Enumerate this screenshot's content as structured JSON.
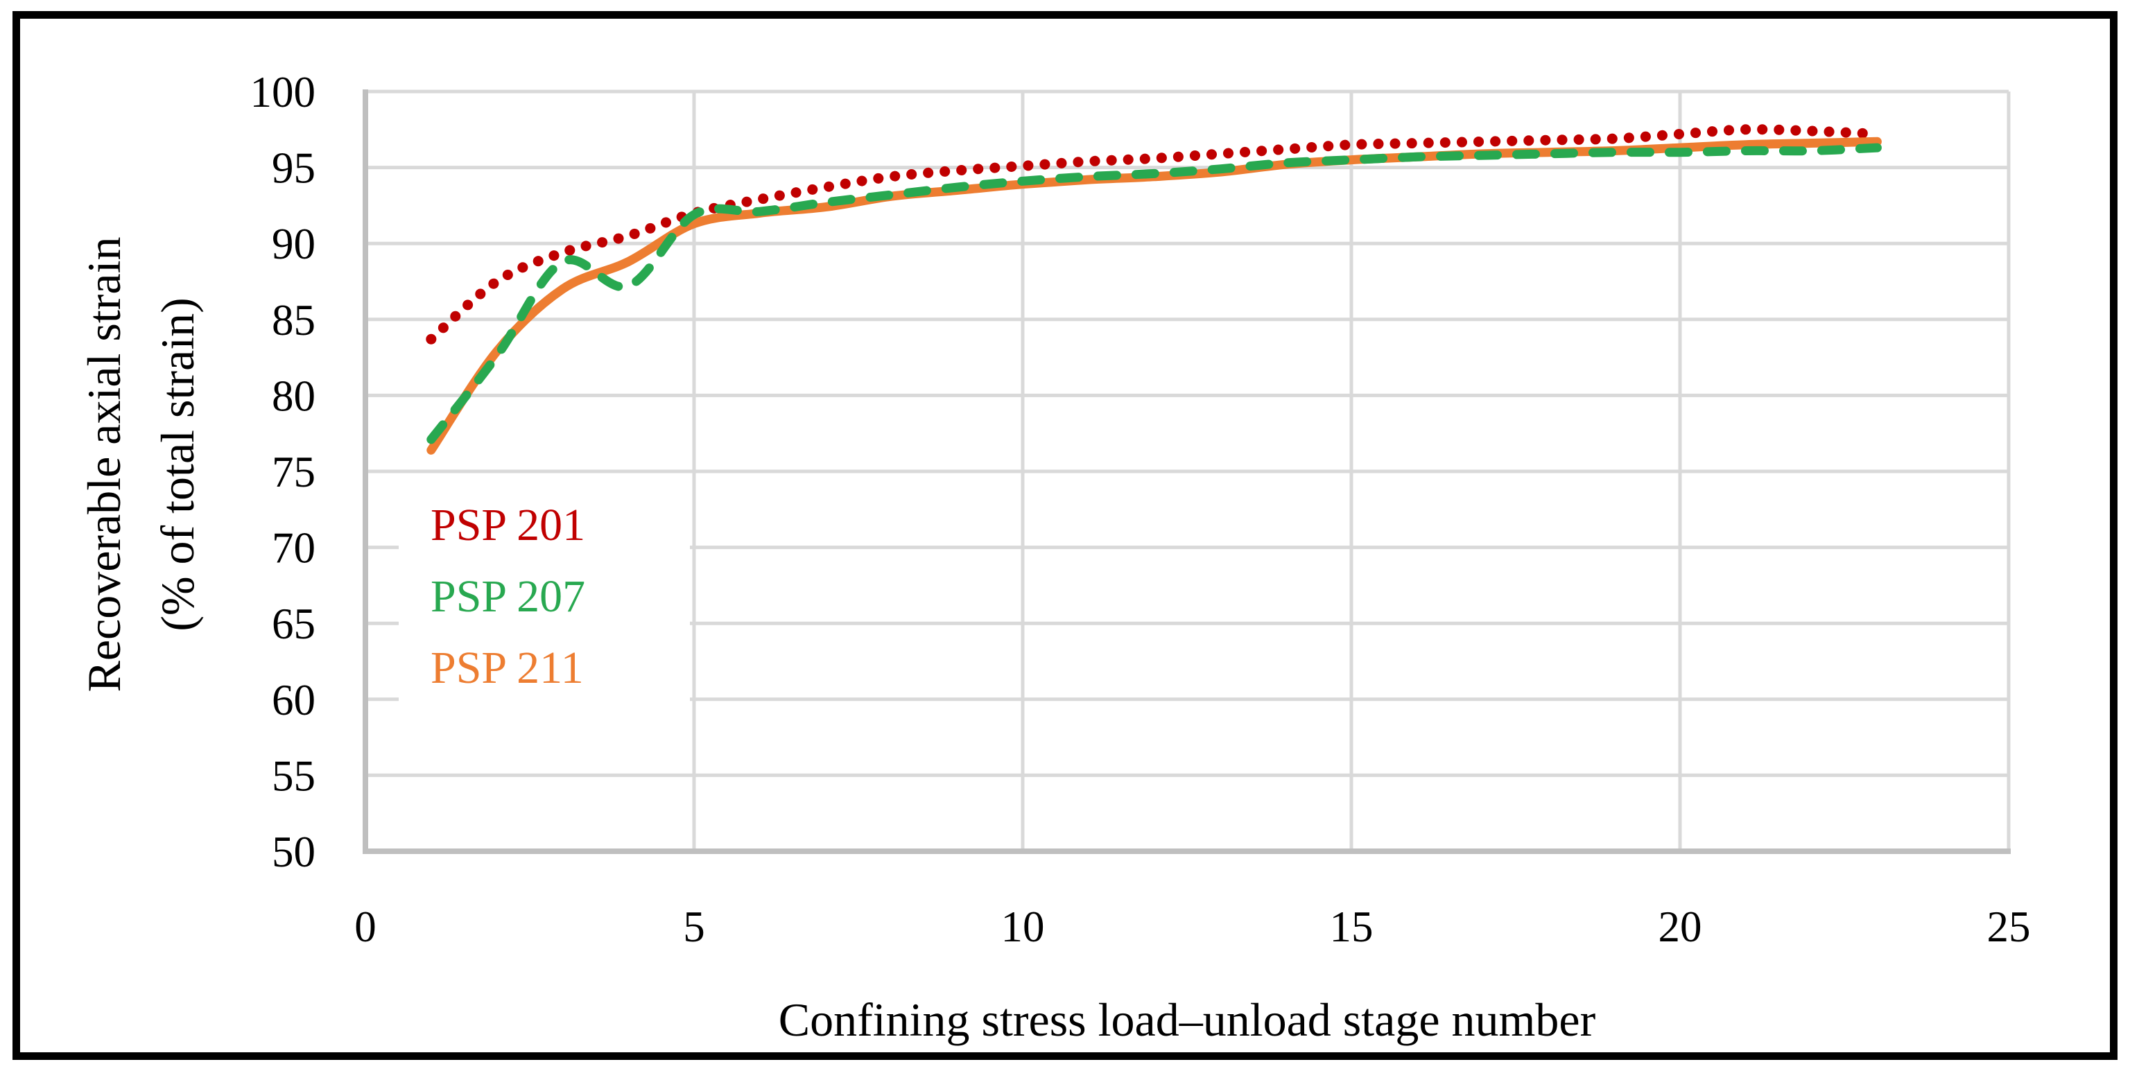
{
  "figure": {
    "background": "#FFFFFF",
    "border_color": "#000000",
    "gridline_color": "#D9D9D9",
    "axis_line_color": "#BFBFBF"
  },
  "chart_data": {
    "type": "line",
    "title": "",
    "xlabel": "Confining stress load–unload stage number",
    "ylabel_line1": "Recoverable axial strain",
    "ylabel_line2": "(% of total strain)",
    "xlim": [
      0,
      25
    ],
    "ylim": [
      50,
      100
    ],
    "xticks": [
      0,
      5,
      10,
      15,
      20,
      25
    ],
    "yticks": [
      100,
      95,
      90,
      85,
      80,
      75,
      70,
      65,
      60,
      55,
      50
    ],
    "grid": true,
    "legend_position": "inside-left",
    "x": [
      1,
      2,
      3,
      4,
      5,
      6,
      7,
      8,
      9,
      10,
      11,
      12,
      13,
      14,
      15,
      16,
      17,
      18,
      19,
      20,
      21,
      22,
      23
    ],
    "series": [
      {
        "name": "PSP 201",
        "color": "#C00000",
        "style": "dotted",
        "values": [
          83.7,
          87.5,
          89.4,
          90.5,
          92.0,
          92.9,
          93.7,
          94.4,
          94.8,
          95.1,
          95.4,
          95.6,
          95.9,
          96.2,
          96.5,
          96.6,
          96.7,
          96.8,
          96.9,
          97.2,
          97.5,
          97.4,
          97.2
        ]
      },
      {
        "name": "PSP 207",
        "color": "#28A850",
        "style": "dashed",
        "values": [
          77.1,
          82.6,
          88.8,
          87.2,
          91.9,
          92.1,
          92.7,
          93.2,
          93.7,
          94.1,
          94.4,
          94.6,
          94.9,
          95.3,
          95.5,
          95.7,
          95.8,
          95.9,
          96.0,
          96.0,
          96.1,
          96.1,
          96.3
        ]
      },
      {
        "name": "PSP 211",
        "color": "#ED7D31",
        "style": "solid",
        "values": [
          76.4,
          82.9,
          87.0,
          88.8,
          91.3,
          92.0,
          92.4,
          93.1,
          93.5,
          93.9,
          94.2,
          94.4,
          94.7,
          95.2,
          95.5,
          95.7,
          95.9,
          96.0,
          96.1,
          96.3,
          96.5,
          96.6,
          96.7
        ]
      }
    ]
  }
}
